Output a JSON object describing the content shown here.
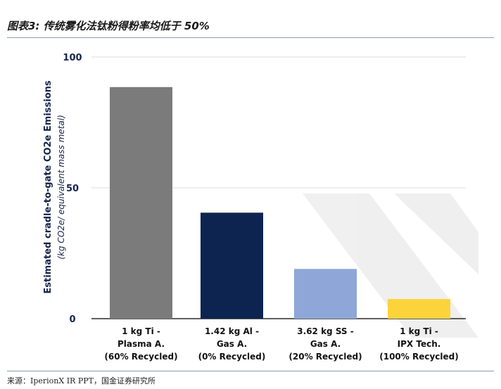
{
  "figure": {
    "title": "图表3:  传统雾化法钛粉得粉率均低于 50%",
    "source": "来源：IperionX IR PPT，国金证券研究所"
  },
  "chart_data": {
    "type": "bar",
    "categories": [
      [
        "1 kg Ti -",
        "Plasma A.",
        "(60% Recycled)"
      ],
      [
        "1.42 kg Al -",
        "Gas A.",
        "(0% Recycled)"
      ],
      [
        "3.62 kg SS -",
        "Gas A.",
        "(20% Recycled)"
      ],
      [
        "1 kg Ti -",
        "IPX Tech.",
        "(100% Recycled)"
      ]
    ],
    "values": [
      88.5,
      40.5,
      19,
      7.5
    ],
    "colors": [
      "#7a7b7a",
      "#0d2350",
      "#8ea7d8",
      "#fcd33a"
    ],
    "ylabel": "Estimated cradle-to-gate CO2e Emissions",
    "ylabel_sub": "(kg CO2e/ equivalent mass metal)",
    "yticks": [
      0,
      50,
      100
    ],
    "ylim": [
      0,
      100
    ],
    "grid": true
  }
}
